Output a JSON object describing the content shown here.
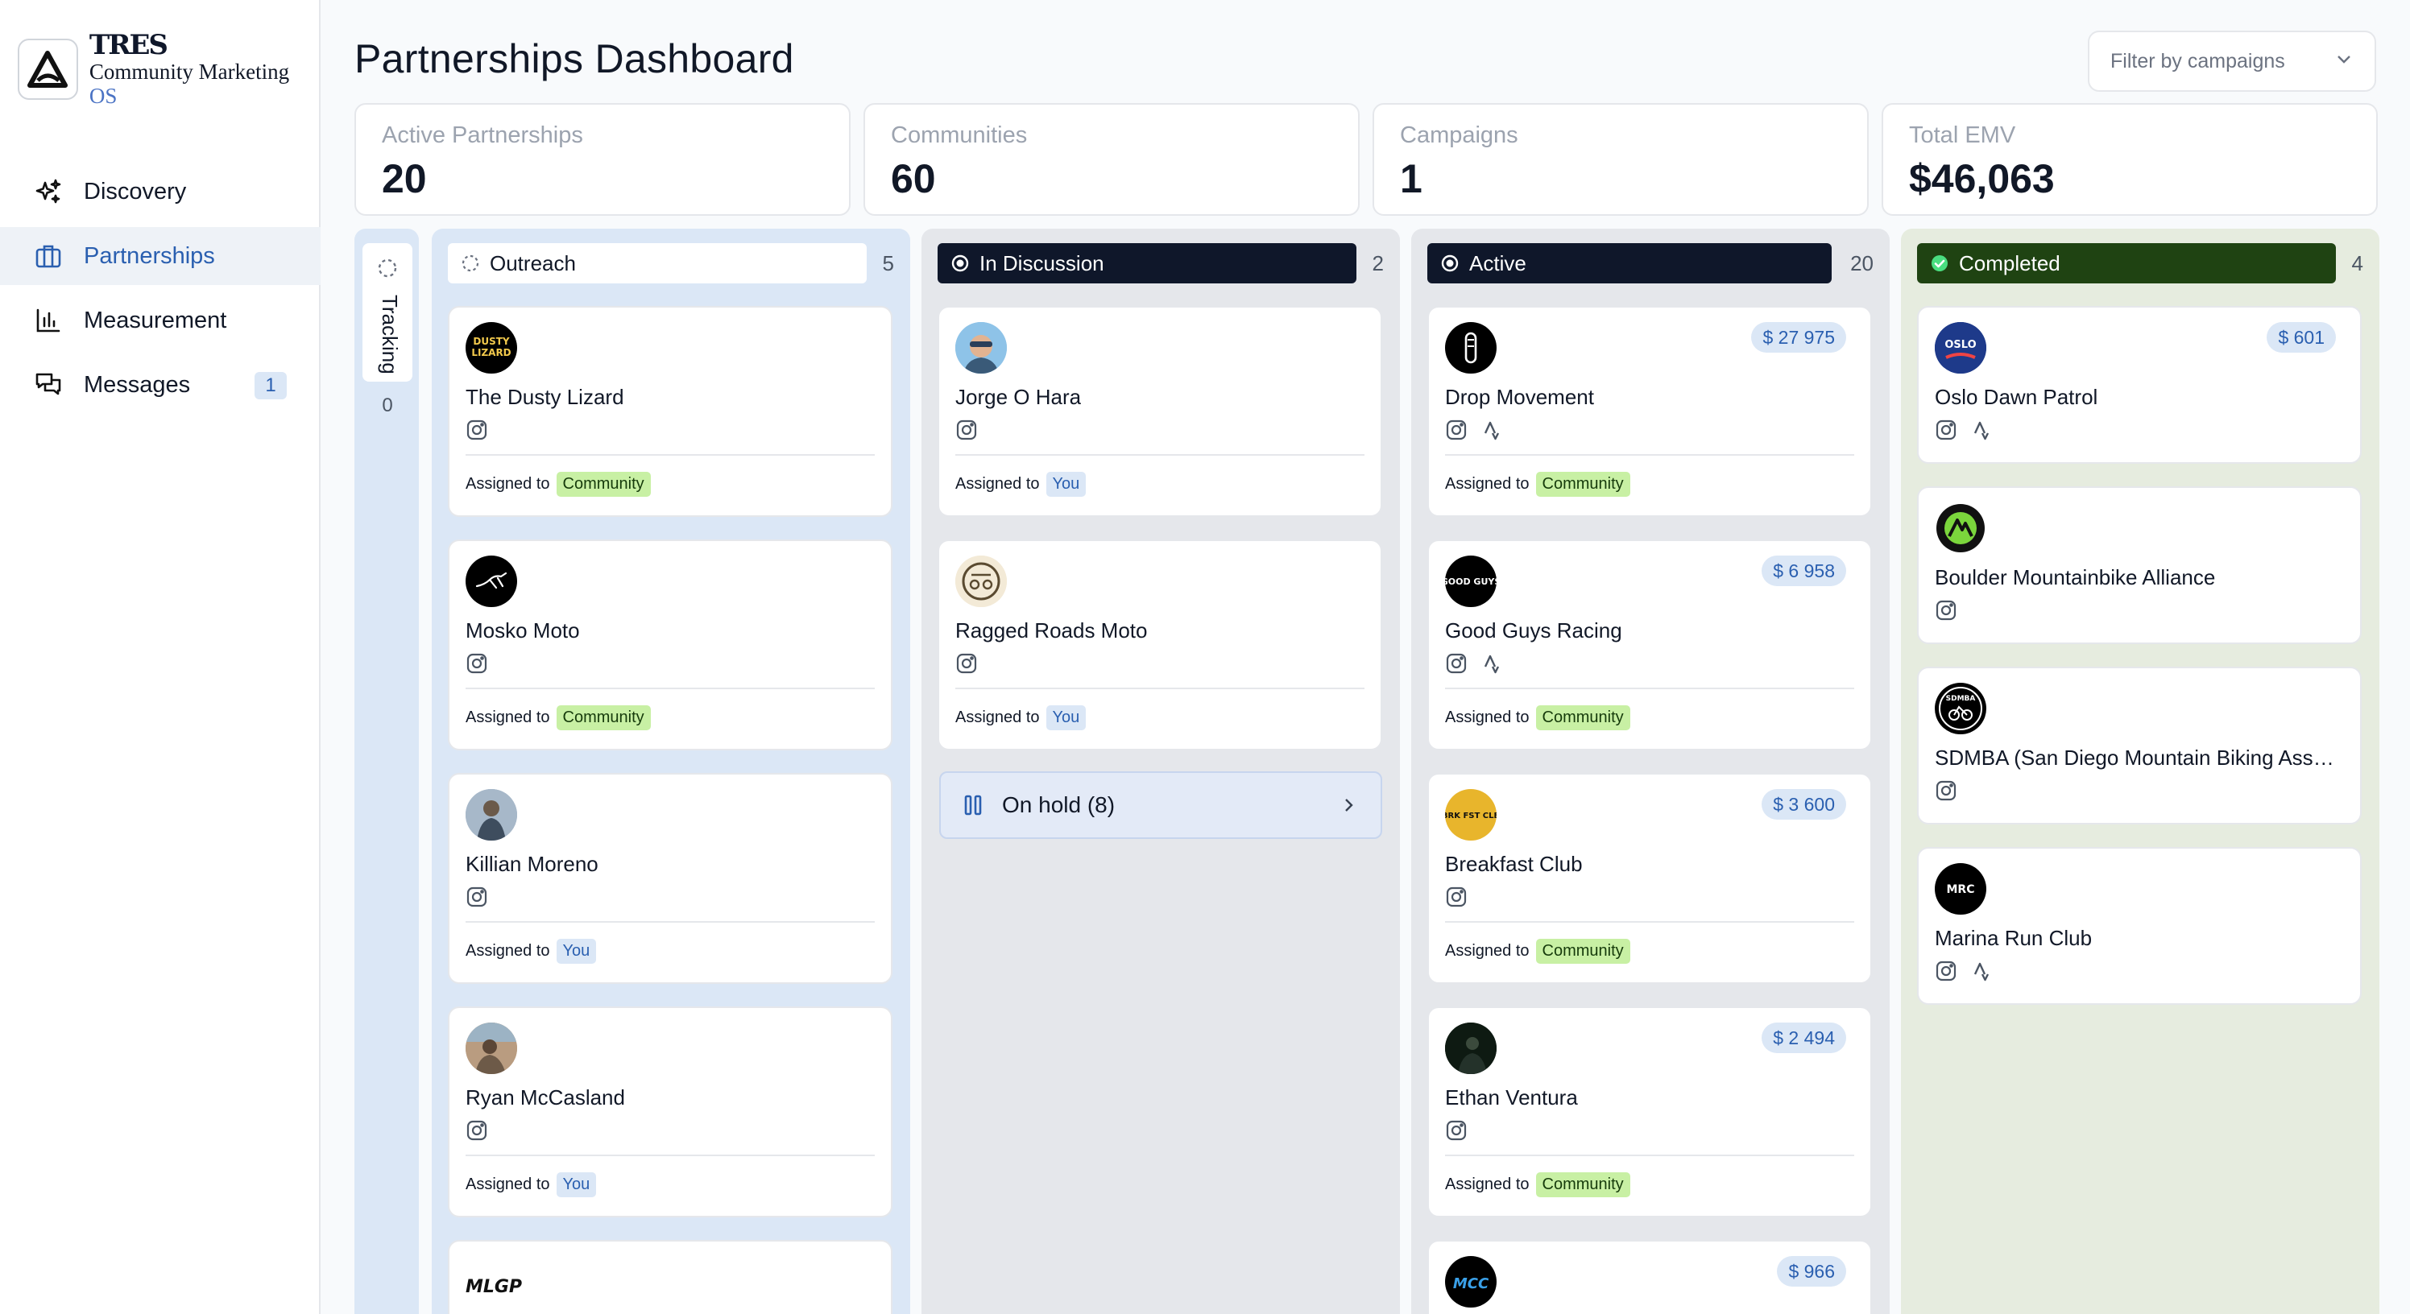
{
  "brand": {
    "name": "TRES",
    "subtitle_main": "Community Marketing",
    "subtitle_os": "OS"
  },
  "nav": [
    {
      "label": "Discovery",
      "icon": "sparkle-icon"
    },
    {
      "label": "Partnerships",
      "icon": "briefcase-icon",
      "active": true
    },
    {
      "label": "Measurement",
      "icon": "bar-chart-icon"
    },
    {
      "label": "Messages",
      "icon": "chat-icon",
      "badge": "1"
    }
  ],
  "header": {
    "title": "Partnerships Dashboard",
    "filter_label": "Filter by campaigns"
  },
  "stats": [
    {
      "label": "Active Partnerships",
      "value": "20"
    },
    {
      "label": "Communities",
      "value": "60"
    },
    {
      "label": "Campaigns",
      "value": "1"
    },
    {
      "label": "Total EMV",
      "value": "$46,063"
    }
  ],
  "assigned_label": "Assigned to",
  "columns": {
    "tracking": {
      "label": "Tracking",
      "count": "0"
    },
    "outreach": {
      "label": "Outreach",
      "count": "5",
      "cards": [
        {
          "name": "The Dusty Lizard",
          "assignee": "Community"
        },
        {
          "name": "Mosko Moto",
          "assignee": "Community"
        },
        {
          "name": "Killian Moreno",
          "assignee": "You"
        },
        {
          "name": "Ryan McCasland",
          "assignee": "You"
        },
        {
          "logo_text": "MLGP"
        }
      ]
    },
    "discussion": {
      "label": "In Discussion",
      "count": "2",
      "cards": [
        {
          "name": "Jorge O Hara",
          "assignee": "You"
        },
        {
          "name": "Ragged Roads Moto",
          "assignee": "You"
        }
      ],
      "on_hold": "On hold (8)"
    },
    "active": {
      "label": "Active",
      "count": "20",
      "cards": [
        {
          "name": "Drop Movement",
          "amount": "$ 27 975",
          "assignee": "Community"
        },
        {
          "name": "Good Guys Racing",
          "amount": "$ 6 958",
          "assignee": "Community",
          "logo_text": "GOOD GUYS"
        },
        {
          "name": "Breakfast Club",
          "amount": "$ 3 600",
          "assignee": "Community",
          "logo_text": "BRK FST CLB"
        },
        {
          "name": "Ethan Ventura",
          "amount": "$ 2 494",
          "assignee": "Community"
        },
        {
          "amount": "$ 966",
          "logo_text": "MCC"
        }
      ]
    },
    "completed": {
      "label": "Completed",
      "count": "4",
      "cards": [
        {
          "name": "Oslo Dawn Patrol",
          "amount": "$ 601",
          "logo_text": "OSLO"
        },
        {
          "name": "Boulder Mountainbike Alliance"
        },
        {
          "name": "SDMBA (San Diego Mountain Biking Association)",
          "logo_text": "SDMBA"
        },
        {
          "name": "Marina Run Club",
          "logo_text": "MRC"
        }
      ]
    }
  },
  "colors": {
    "accent": "#2a5fb0",
    "discussion_bg": "#0f172a",
    "completed_bg": "#1f4312",
    "community_tag": "#c8f0a4",
    "you_tag": "#dbe7f6"
  }
}
